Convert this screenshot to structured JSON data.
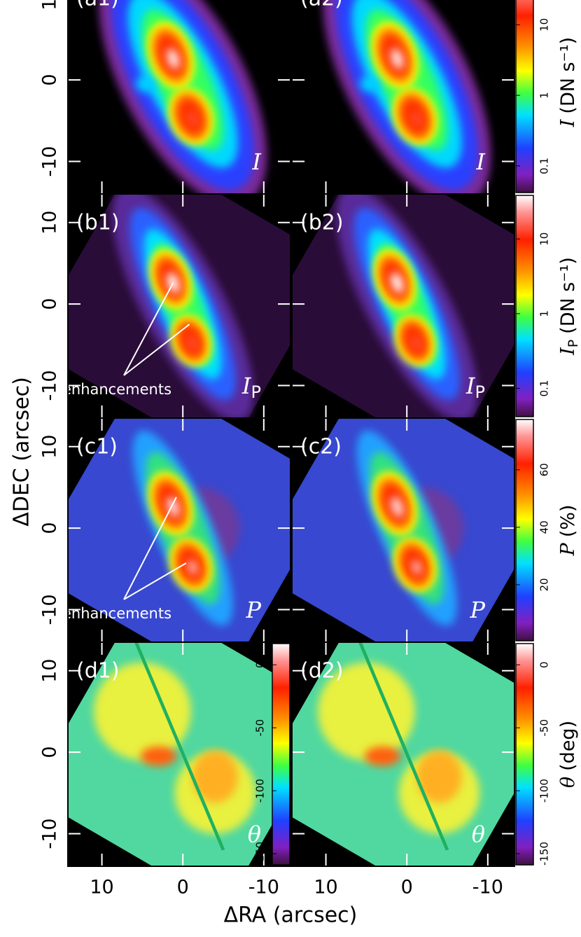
{
  "figure": {
    "x_axis_label": "ΔRA (arcsec)",
    "y_axis_label": "ΔDEC (arcsec)",
    "xlim": [
      14.2,
      -13.3
    ],
    "ylim": [
      -14,
      13.5
    ],
    "xticks": [
      10,
      0,
      -10
    ],
    "yticks": [
      10,
      0,
      -10
    ],
    "rows": [
      {
        "panels": [
          {
            "label": "(a1)",
            "symbol": "I"
          },
          {
            "label": "(a2)",
            "symbol": "I"
          }
        ],
        "colorbar": {
          "symbol": "I",
          "unit": "(DN s⁻¹)",
          "log": true,
          "clim": [
            0.04,
            60
          ],
          "ticks": [
            0.1,
            1,
            10
          ]
        }
      },
      {
        "panels": [
          {
            "label": "(b1)",
            "symbol": "I",
            "subscript": "P",
            "annotation": "enhancements"
          },
          {
            "label": "(b2)",
            "symbol": "I",
            "subscript": "P"
          }
        ],
        "colorbar": {
          "symbol": "I",
          "subscript": "P",
          "unit": "(DN s⁻¹)",
          "log": true,
          "clim": [
            0.04,
            40
          ],
          "ticks": [
            0.1,
            1,
            10
          ]
        }
      },
      {
        "panels": [
          {
            "label": "(c1)",
            "symbol": "P",
            "annotation": "enhancements"
          },
          {
            "label": "(c2)",
            "symbol": "P"
          }
        ],
        "colorbar": {
          "symbol": "P",
          "unit": "(%)",
          "log": false,
          "clim": [
            0,
            78
          ],
          "ticks": [
            20,
            40,
            60
          ]
        }
      },
      {
        "panels": [
          {
            "label": "(d1)",
            "symbol": "θ"
          },
          {
            "label": "(d2)",
            "symbol": "θ"
          }
        ],
        "colorbar": {
          "symbol": "θ",
          "unit": "(deg)",
          "log": false,
          "clim": [
            -160,
            18
          ],
          "ticks": [
            0,
            -50,
            -100,
            -150
          ]
        }
      }
    ]
  }
}
